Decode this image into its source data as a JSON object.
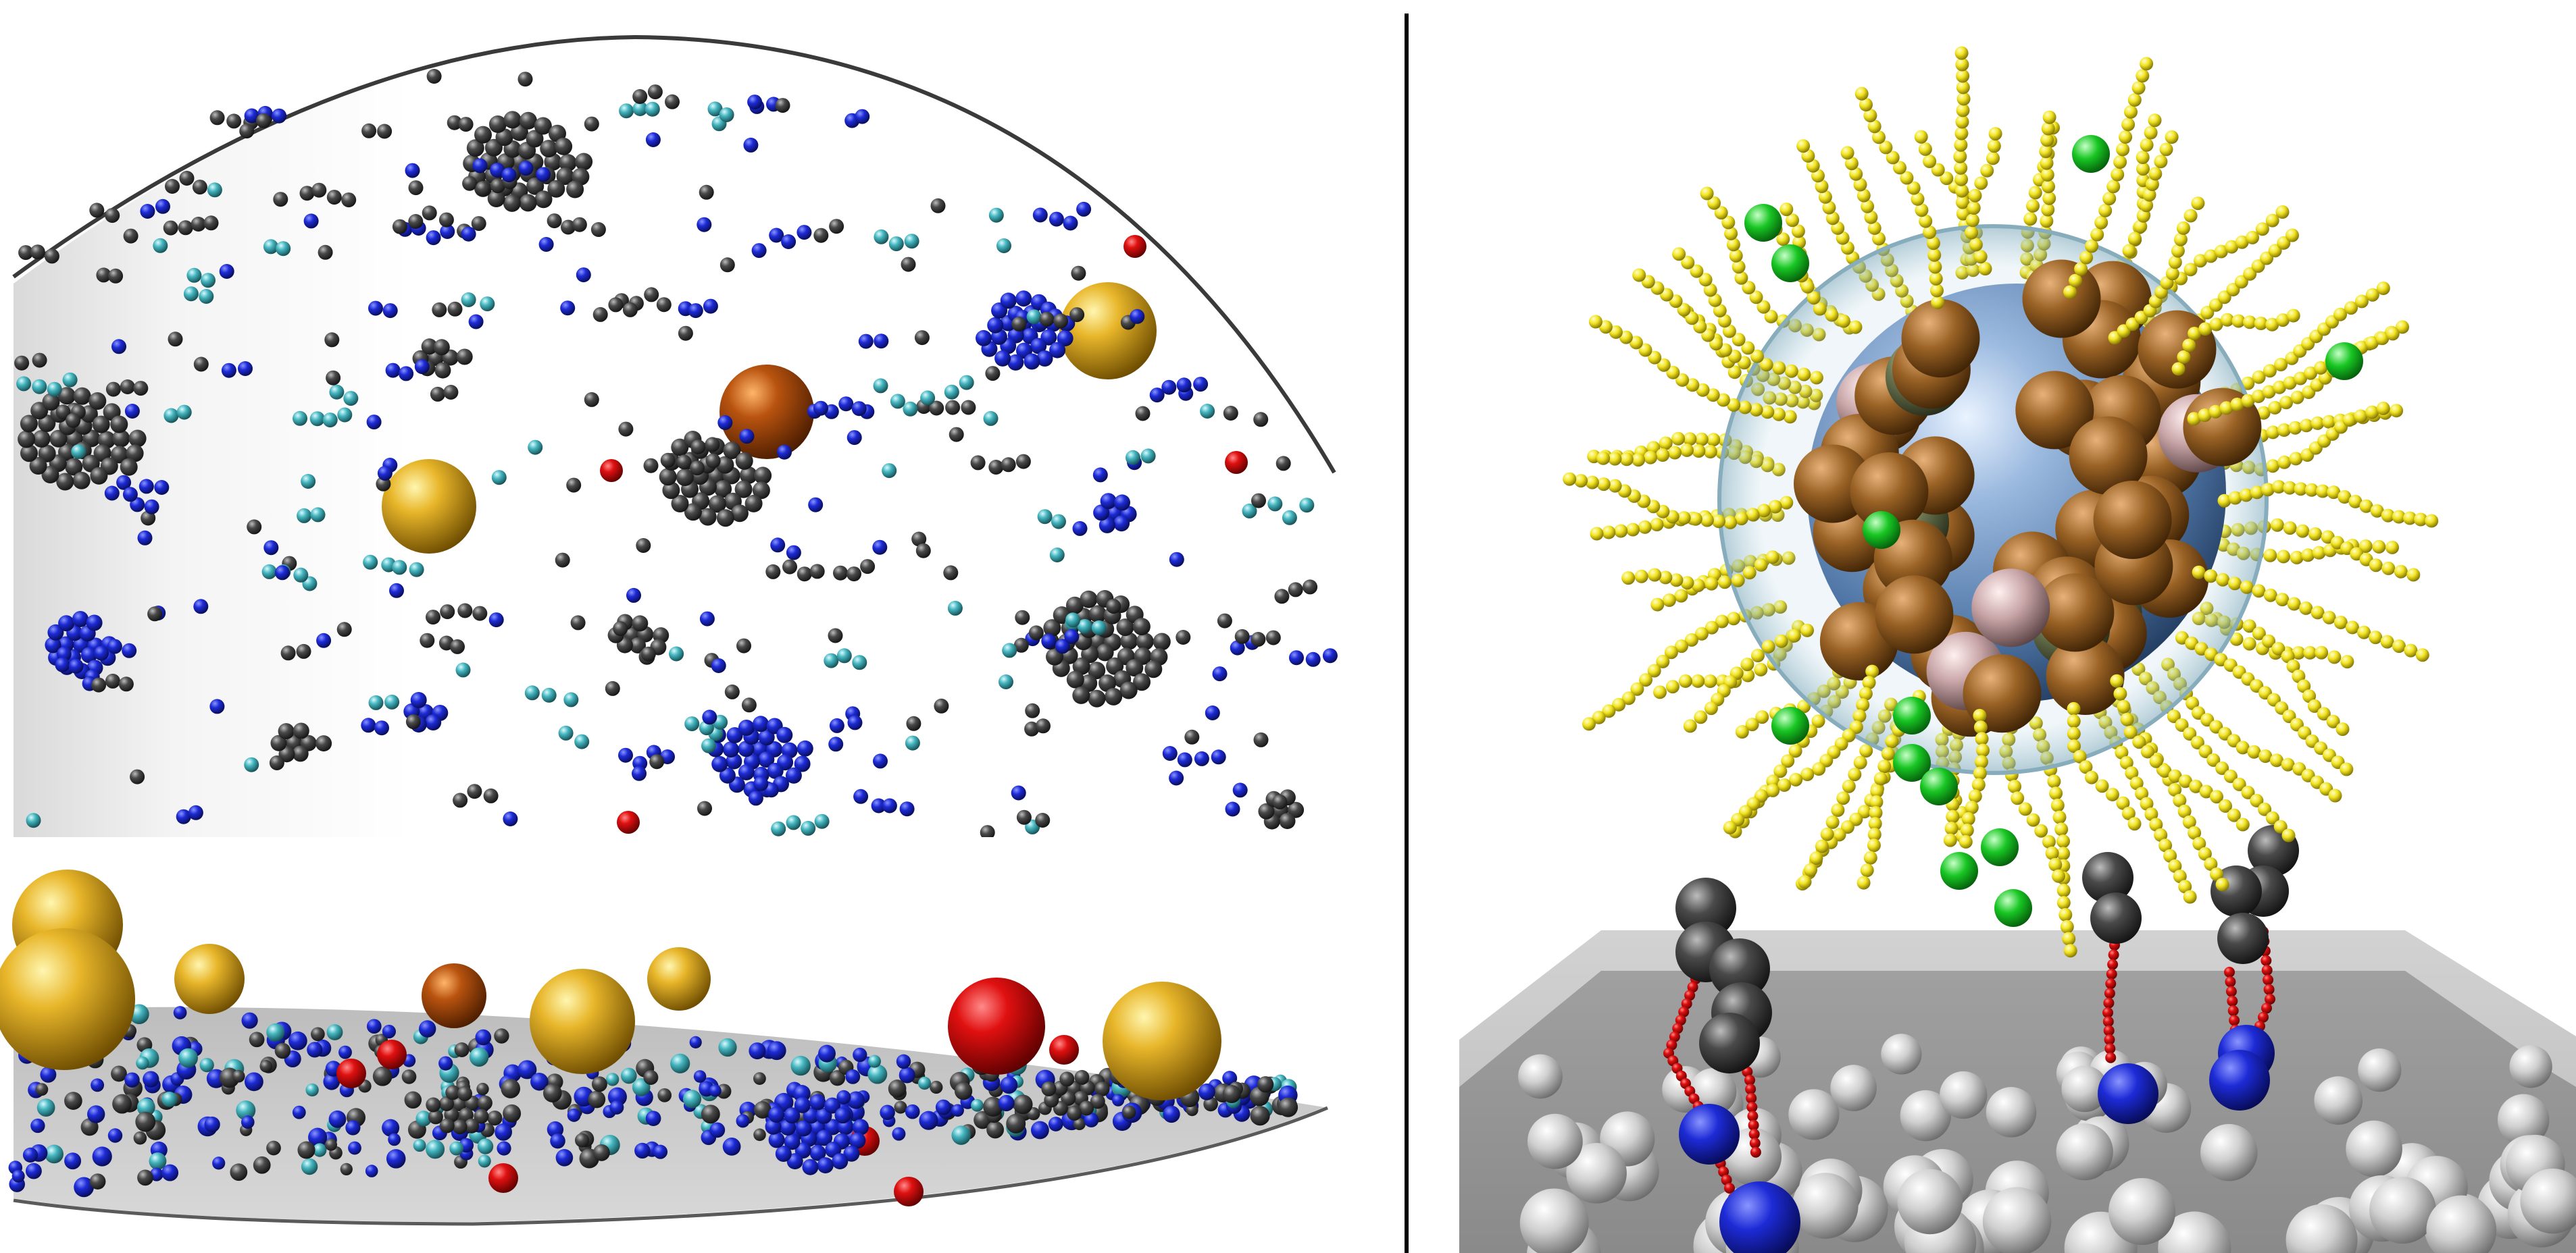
{
  "figure": {
    "left_panel": {
      "top_view": "dome-top-view",
      "side_view": "membrane-disc-side-view"
    },
    "right_panel": {
      "scene": "nanoparticle-binding-to-surface"
    }
  },
  "colors": {
    "background": "#ffffff",
    "divider": "#000000",
    "gold": "#d9a516",
    "copper": "#b8530f",
    "red": "#d10b0b",
    "blue": "#1d2bd6",
    "cyan": "#45b5bf",
    "dark_gray": "#4a4a4a",
    "yellow": "#f2e421",
    "green": "#18c623",
    "core_blue": "#5f86b4",
    "brown": "#9a6225",
    "surface_gray": "#a8a8a8"
  }
}
